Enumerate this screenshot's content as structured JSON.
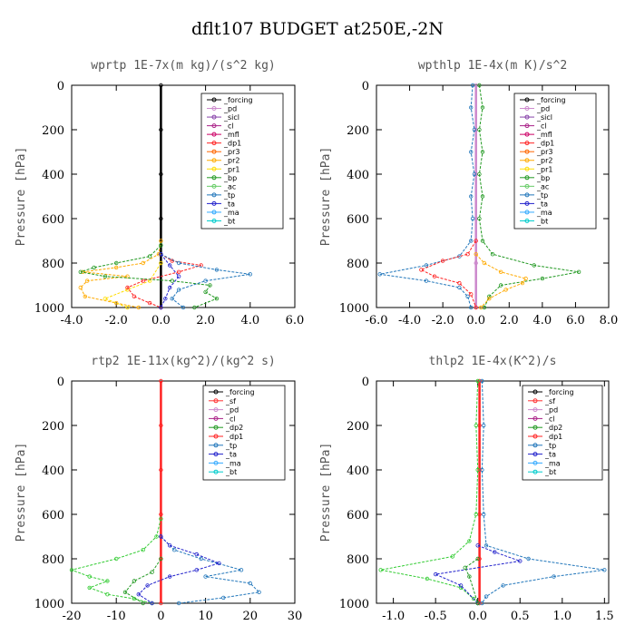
{
  "title": "dflt107  BUDGET at250E,-2N",
  "chart_data": [
    {
      "type": "line",
      "title": "wprtp  1E-7x(m kg)/(s^2 kg)",
      "ylabel": "Pressure [hPa]",
      "xlim": [
        -4.0,
        6.0
      ],
      "xticks": [
        "-4.0",
        "-2.0",
        "0.0",
        "2.0",
        "4.0",
        "6.0"
      ],
      "ylim": [
        0,
        1000
      ],
      "yticks": [
        "0",
        "200",
        "400",
        "600",
        "800",
        "1000"
      ],
      "legend": [
        "_forcing",
        "_pd",
        "_sicl",
        "_cl",
        "_mfl",
        "_dp1",
        "_pr3",
        "_pr2",
        "_pr1",
        "_bp",
        "_ac",
        "_tp",
        "_ta",
        "_ma",
        "_bt"
      ],
      "series": [
        {
          "name": "_forcing",
          "color": "#000000",
          "points": [
            [
              0,
              0
            ],
            [
              0,
              200
            ],
            [
              0,
              400
            ],
            [
              0,
              600
            ],
            [
              0,
              800
            ],
            [
              0,
              1000
            ]
          ]
        },
        {
          "name": "_pr1",
          "color": "#ffaa00",
          "points": [
            [
              0,
              700
            ],
            [
              -0.1,
              760
            ],
            [
              -0.8,
              800
            ],
            [
              -2.0,
              820
            ],
            [
              -3.5,
              840
            ],
            [
              -1.5,
              860
            ],
            [
              -3.3,
              880
            ],
            [
              -3.6,
              910
            ],
            [
              -3.4,
              950
            ],
            [
              -2.0,
              980
            ],
            [
              -1.0,
              1000
            ]
          ]
        },
        {
          "name": "_pr2",
          "color": "#ffdd00",
          "points": [
            [
              0,
              800
            ],
            [
              -0.5,
              880
            ],
            [
              -1.5,
              920
            ],
            [
              -2.5,
              960
            ],
            [
              -1.5,
              1000
            ]
          ]
        },
        {
          "name": "_dp1",
          "color": "#ff2222",
          "points": [
            [
              0,
              760
            ],
            [
              0.5,
              790
            ],
            [
              1.8,
              810
            ],
            [
              0.8,
              840
            ],
            [
              -0.8,
              880
            ],
            [
              -1.5,
              910
            ],
            [
              -1.2,
              950
            ],
            [
              -0.5,
              980
            ],
            [
              0,
              1000
            ]
          ]
        },
        {
          "name": "_bp",
          "color": "#229922",
          "points": [
            [
              0,
              720
            ],
            [
              -0.5,
              770
            ],
            [
              -2.0,
              800
            ],
            [
              -3.0,
              820
            ],
            [
              -3.6,
              840
            ],
            [
              -2.5,
              860
            ],
            [
              0.5,
              880
            ],
            [
              2.2,
              900
            ],
            [
              2.0,
              930
            ],
            [
              2.5,
              960
            ],
            [
              1.5,
              1000
            ]
          ]
        },
        {
          "name": "_tp",
          "color": "#2277bb",
          "points": [
            [
              0,
              760
            ],
            [
              0.8,
              800
            ],
            [
              2.5,
              830
            ],
            [
              4.0,
              850
            ],
            [
              2.0,
              880
            ],
            [
              0.8,
              920
            ],
            [
              0.5,
              960
            ],
            [
              1.0,
              1000
            ]
          ]
        },
        {
          "name": "_ta",
          "color": "#2222cc",
          "points": [
            [
              0,
              760
            ],
            [
              0.4,
              810
            ],
            [
              0.8,
              860
            ],
            [
              0.4,
              910
            ],
            [
              0.2,
              960
            ],
            [
              0,
              1000
            ]
          ]
        }
      ]
    },
    {
      "type": "line",
      "title": "wpthlp  1E-4x(m K)/s^2",
      "ylabel": "Pressure [hPa]",
      "xlim": [
        -6.0,
        8.0
      ],
      "xticks": [
        "-6.0",
        "-4.0",
        "-2.0",
        "0.0",
        "2.0",
        "4.0",
        "6.0",
        "8.0"
      ],
      "ylim": [
        0,
        1000
      ],
      "yticks": [
        "0",
        "200",
        "400",
        "600",
        "800",
        "1000"
      ],
      "legend": [
        "_forcing",
        "_pd",
        "_sicl",
        "_cl",
        "_mfl",
        "_dp1",
        "_pr3",
        "_pr2",
        "_pr1",
        "_bp",
        "_ac",
        "_tp",
        "_ta",
        "_ma",
        "_bt"
      ],
      "series": [
        {
          "name": "_forcing",
          "color": "#cc88cc",
          "points": [
            [
              0,
              0
            ],
            [
              0,
              200
            ],
            [
              0,
              400
            ],
            [
              0,
              600
            ],
            [
              0,
              800
            ],
            [
              0,
              1000
            ]
          ]
        },
        {
          "name": "_tp",
          "color": "#2277bb",
          "points": [
            [
              -0.2,
              0
            ],
            [
              -0.3,
              100
            ],
            [
              -0.1,
              200
            ],
            [
              -0.3,
              300
            ],
            [
              -0.1,
              400
            ],
            [
              -0.3,
              500
            ],
            [
              -0.2,
              600
            ],
            [
              -0.3,
              700
            ],
            [
              -1.0,
              770
            ],
            [
              -3.0,
              810
            ],
            [
              -5.8,
              850
            ],
            [
              -3.0,
              880
            ],
            [
              -1.0,
              910
            ],
            [
              -0.5,
              950
            ],
            [
              -0.3,
              1000
            ]
          ]
        },
        {
          "name": "_dp1",
          "color": "#ff2222",
          "points": [
            [
              0,
              700
            ],
            [
              -0.5,
              760
            ],
            [
              -2.0,
              790
            ],
            [
              -3.3,
              830
            ],
            [
              -2.5,
              860
            ],
            [
              -1.0,
              890
            ],
            [
              -0.3,
              940
            ],
            [
              0,
              1000
            ]
          ]
        },
        {
          "name": "_bp",
          "color": "#229922",
          "points": [
            [
              0.2,
              0
            ],
            [
              0.4,
              100
            ],
            [
              0.2,
              200
            ],
            [
              0.4,
              300
            ],
            [
              0.2,
              400
            ],
            [
              0.4,
              500
            ],
            [
              0.2,
              600
            ],
            [
              0.4,
              700
            ],
            [
              1.0,
              760
            ],
            [
              3.5,
              810
            ],
            [
              6.2,
              840
            ],
            [
              4.0,
              870
            ],
            [
              1.5,
              900
            ],
            [
              0.8,
              950
            ],
            [
              0.5,
              1000
            ]
          ]
        },
        {
          "name": "_pr1",
          "color": "#ffaa00",
          "points": [
            [
              0,
              760
            ],
            [
              0.5,
              800
            ],
            [
              1.5,
              840
            ],
            [
              3.0,
              870
            ],
            [
              2.8,
              890
            ],
            [
              1.8,
              920
            ],
            [
              0.8,
              960
            ],
            [
              0.3,
              1000
            ]
          ]
        }
      ]
    },
    {
      "type": "line",
      "title": "rtp2  1E-11x(kg^2)/(kg^2 s)",
      "ylabel": "Pressure [hPa]",
      "xlim": [
        -20,
        30
      ],
      "xticks": [
        "-20",
        "-10",
        "0",
        "10",
        "20",
        "30"
      ],
      "ylim": [
        0,
        1000
      ],
      "yticks": [
        "0",
        "200",
        "400",
        "600",
        "800",
        "1000"
      ],
      "legend": [
        "_forcing",
        "_sf",
        "_pd",
        "_cl",
        "_dp2",
        "_dp1",
        "_tp",
        "_ta",
        "_ma",
        "_bt"
      ],
      "series": [
        {
          "name": "_forcing",
          "color": "#ff2222",
          "points": [
            [
              0,
              0
            ],
            [
              0,
              200
            ],
            [
              0,
              400
            ],
            [
              0,
              600
            ],
            [
              0,
              800
            ],
            [
              0,
              1000
            ]
          ]
        },
        {
          "name": "_dp1",
          "color": "#33cc33",
          "points": [
            [
              0,
              620
            ],
            [
              -1,
              700
            ],
            [
              -4,
              760
            ],
            [
              -10,
              800
            ],
            [
              -20,
              850
            ],
            [
              -16,
              880
            ],
            [
              -12,
              900
            ],
            [
              -16,
              930
            ],
            [
              -12,
              960
            ],
            [
              -6,
              980
            ],
            [
              -2,
              1000
            ]
          ]
        },
        {
          "name": "_dp2",
          "color": "#229922",
          "points": [
            [
              0,
              800
            ],
            [
              -2,
              860
            ],
            [
              -6,
              900
            ],
            [
              -8,
              950
            ],
            [
              -4,
              1000
            ]
          ]
        },
        {
          "name": "_tp",
          "color": "#2277bb",
          "points": [
            [
              0,
              700
            ],
            [
              3,
              760
            ],
            [
              9,
              800
            ],
            [
              18,
              850
            ],
            [
              10,
              880
            ],
            [
              20,
              910
            ],
            [
              22,
              950
            ],
            [
              14,
              975
            ],
            [
              4,
              1000
            ]
          ]
        },
        {
          "name": "_ta",
          "color": "#2222cc",
          "points": [
            [
              0,
              700
            ],
            [
              2,
              740
            ],
            [
              8,
              780
            ],
            [
              13,
              820
            ],
            [
              8,
              850
            ],
            [
              2,
              880
            ],
            [
              -3,
              920
            ],
            [
              -5,
              960
            ],
            [
              -2,
              1000
            ]
          ]
        }
      ]
    },
    {
      "type": "line",
      "title": "thlp2  1E-4x(K^2)/s",
      "ylabel": "Pressure [hPa]",
      "xlim": [
        -1.2,
        1.55
      ],
      "xticks": [
        "-1.0",
        "-0.5",
        "0.0",
        "0.5",
        "1.0",
        "1.5"
      ],
      "ylim": [
        0,
        1000
      ],
      "yticks": [
        "0",
        "200",
        "400",
        "600",
        "800",
        "1000"
      ],
      "legend": [
        "_forcing",
        "_sf",
        "_pd",
        "_cl",
        "_dp2",
        "_dp1",
        "_tp",
        "_ta",
        "_ma",
        "_bt"
      ],
      "series": [
        {
          "name": "_forcing",
          "color": "#ff2222",
          "points": [
            [
              0.02,
              0
            ],
            [
              0.02,
              200
            ],
            [
              0.02,
              400
            ],
            [
              0.02,
              600
            ],
            [
              0.02,
              800
            ],
            [
              0.02,
              1000
            ]
          ]
        },
        {
          "name": "_dp1",
          "color": "#33cc33",
          "points": [
            [
              0,
              0
            ],
            [
              -0.02,
              200
            ],
            [
              0,
              400
            ],
            [
              -0.02,
              600
            ],
            [
              -0.1,
              720
            ],
            [
              -0.3,
              790
            ],
            [
              -1.15,
              850
            ],
            [
              -0.6,
              890
            ],
            [
              -0.2,
              930
            ],
            [
              -0.05,
              980
            ],
            [
              0,
              1000
            ]
          ]
        },
        {
          "name": "_tp",
          "color": "#2277bb",
          "points": [
            [
              0.05,
              0
            ],
            [
              0.07,
              200
            ],
            [
              0.05,
              400
            ],
            [
              0.07,
              600
            ],
            [
              0.1,
              740
            ],
            [
              0.6,
              800
            ],
            [
              1.5,
              850
            ],
            [
              0.9,
              880
            ],
            [
              0.3,
              920
            ],
            [
              0.1,
              970
            ],
            [
              0.05,
              1000
            ]
          ]
        },
        {
          "name": "_ta",
          "color": "#2222cc",
          "points": [
            [
              0,
              740
            ],
            [
              0.2,
              770
            ],
            [
              0.5,
              810
            ],
            [
              -0.5,
              870
            ],
            [
              -0.2,
              920
            ],
            [
              0,
              1000
            ]
          ]
        },
        {
          "name": "_dp2",
          "color": "#229922",
          "points": [
            [
              0,
              800
            ],
            [
              -0.15,
              840
            ],
            [
              -0.1,
              880
            ],
            [
              0,
              1000
            ]
          ]
        }
      ]
    }
  ]
}
